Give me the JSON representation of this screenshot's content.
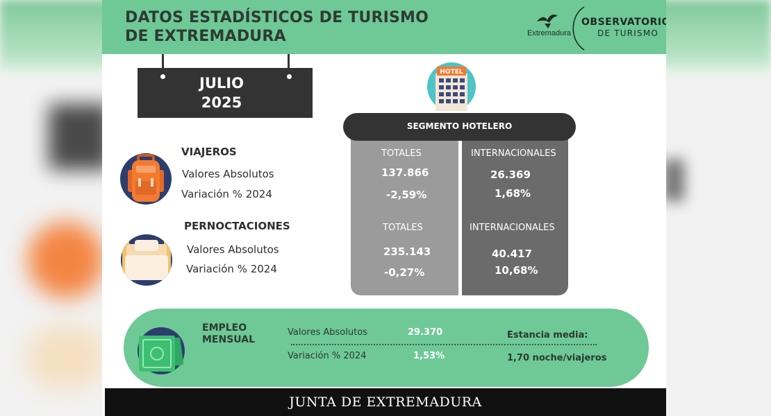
{
  "header": {
    "title_line1": "DATOS ESTADÍSTICOS DE TURISMO",
    "title_line2": "DE EXTREMADURA",
    "logo_region": "Extremadura",
    "logo_observatorio": "OBSERVATORIO",
    "logo_turismo": "DE TURISMO"
  },
  "period": {
    "month": "JULIO",
    "year": "2025"
  },
  "hotel_icon_label": "HOTEL",
  "segment": {
    "title": "SEGMENTO HOTELERO",
    "viajeros": {
      "totales_label": "TOTALES",
      "totales_value": "137.866",
      "totales_variation": "-2,59%",
      "internacionales_label": "INTERNACIONALES",
      "internacionales_value": "26.369",
      "internacionales_variation": "1,68%"
    },
    "pernoctaciones": {
      "totales_label": "TOTALES",
      "totales_value": "235.143",
      "totales_variation": "-0,27%",
      "internacionales_label": "INTERNACIONALES",
      "internacionales_value": "40.417",
      "internacionales_variation": "10,68%"
    }
  },
  "viajeros": {
    "heading": "VIAJEROS",
    "absolutos_label": "Valores Absolutos",
    "variacion_label": "Variación % 2024"
  },
  "pernoctaciones": {
    "heading": "PERNOCTACIONES",
    "absolutos_label": "Valores Absolutos",
    "variacion_label": "Variación % 2024"
  },
  "empleo": {
    "heading_line1": "EMPLEO",
    "heading_line2": "MENSUAL",
    "absolutos_label": "Valores Absolutos",
    "absolutos_value": "29.370",
    "variacion_label": "Variación % 2024",
    "variacion_value": "1,53%",
    "estancia_label": "Estancia media:",
    "estancia_value": "1,70 noche/viajeros"
  },
  "footer": {
    "text": "JUNTA DE EXTREMADURA"
  },
  "colors": {
    "header_green": "#6ec996",
    "dark": "#333333",
    "box_light_gray": "#9b9b9b",
    "box_dark_gray": "#6b6b6b",
    "icon_navy": "#2d3d6e",
    "backpack_orange": "#f47a30"
  },
  "icons": {
    "hotel": "hotel-icon",
    "backpack": "backpack-icon",
    "bed": "bed-icon",
    "money": "money-icon",
    "logo": "bird-logo-icon"
  }
}
